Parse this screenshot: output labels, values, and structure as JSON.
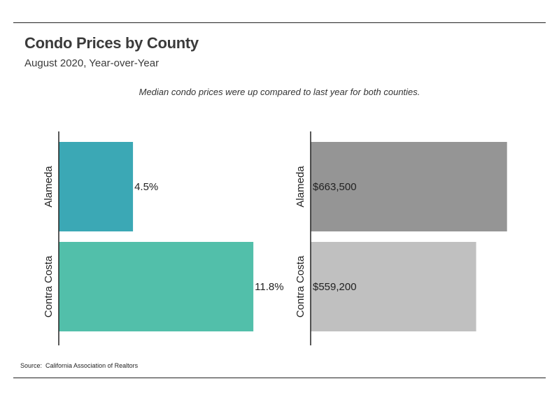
{
  "title": "Condo Prices by County",
  "subtitle": "August 2020, Year-over-Year",
  "annotation": "Median condo prices were up compared to last year for both counties.",
  "source": {
    "label": "Source:",
    "text": "California Association of Realtors"
  },
  "colors": {
    "alameda_change": "#3ba8b5",
    "contra_costa_change": "#52bfaa",
    "alameda_price": "#959595",
    "contra_costa_price": "#c0c0c0",
    "axis": "#222222",
    "label": "#222222"
  },
  "chart_data": [
    {
      "type": "bar",
      "orientation": "horizontal",
      "categories": [
        "Alameda",
        "Contra Costa"
      ],
      "values": [
        4.5,
        11.8
      ],
      "value_labels": [
        "4.5%",
        "11.8%"
      ],
      "title": "",
      "xlabel": "",
      "ylabel": "",
      "xlim": [
        0,
        14
      ],
      "grid": false,
      "legend": "none"
    },
    {
      "type": "bar",
      "orientation": "horizontal",
      "categories": [
        "Alameda",
        "Contra Costa"
      ],
      "values": [
        663500,
        559200
      ],
      "value_labels": [
        "$663,500",
        "$559,200"
      ],
      "title": "",
      "xlabel": "",
      "ylabel": "",
      "xlim": [
        0,
        780000
      ],
      "grid": false,
      "legend": "none"
    }
  ]
}
